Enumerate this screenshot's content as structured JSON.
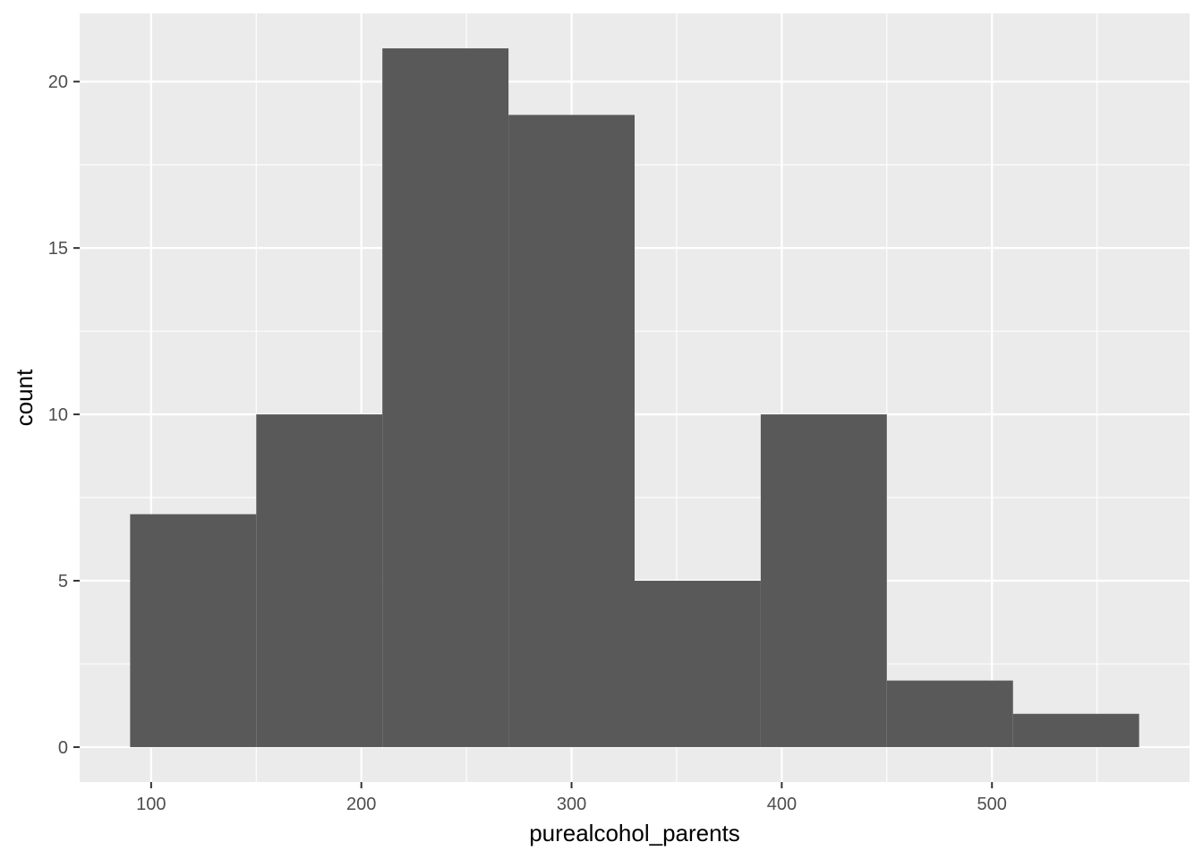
{
  "chart_data": {
    "type": "bar",
    "subtype": "histogram",
    "bins": [
      {
        "x0": 90,
        "x1": 150,
        "count": 7
      },
      {
        "x0": 150,
        "x1": 210,
        "count": 10
      },
      {
        "x0": 210,
        "x1": 270,
        "count": 21
      },
      {
        "x0": 270,
        "x1": 330,
        "count": 19
      },
      {
        "x0": 330,
        "x1": 390,
        "count": 5
      },
      {
        "x0": 390,
        "x1": 450,
        "count": 10
      },
      {
        "x0": 450,
        "x1": 510,
        "count": 2
      },
      {
        "x0": 510,
        "x1": 570,
        "count": 1
      }
    ],
    "xlabel": "purealcohol_parents",
    "ylabel": "count",
    "xlim": [
      66,
      594
    ],
    "ylim": [
      -1.05,
      22.05
    ],
    "x_ticks": [
      100,
      200,
      300,
      400,
      500
    ],
    "x_tick_labels": [
      "100",
      "200",
      "300",
      "400",
      "500"
    ],
    "x_minor_ticks": [
      150,
      250,
      350,
      450,
      550
    ],
    "y_ticks": [
      0,
      5,
      10,
      15,
      20
    ],
    "y_tick_labels": [
      "0",
      "5",
      "10",
      "15",
      "20"
    ],
    "y_minor_ticks": [
      2.5,
      7.5,
      12.5,
      17.5
    ],
    "grid": true,
    "legend": "none",
    "colors": {
      "panel_background": "#ebebeb",
      "grid_line": "#ffffff",
      "bar_fill": "#595959",
      "tick_mark": "#333333",
      "tick_label": "#4d4d4d",
      "axis_title": "#000000"
    }
  }
}
